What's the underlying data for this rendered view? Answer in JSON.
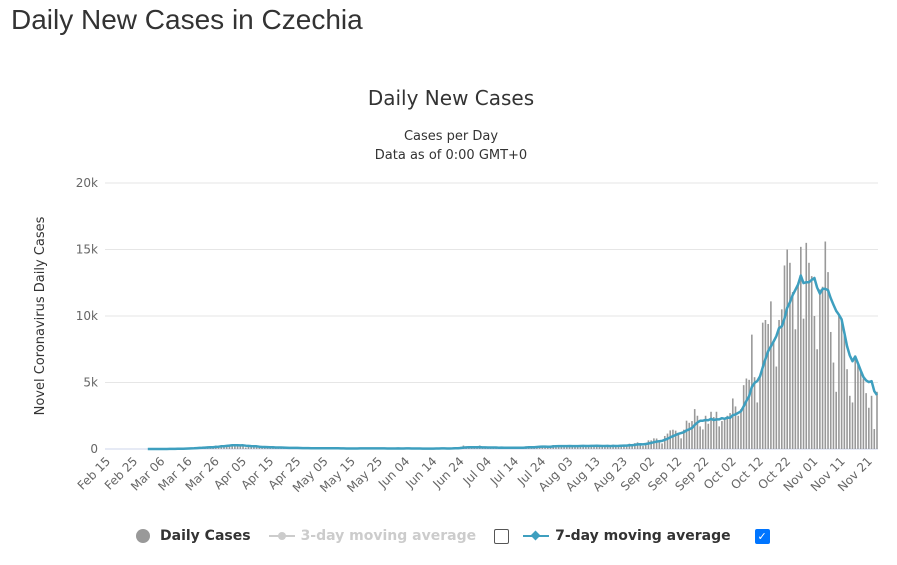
{
  "page_title": "Daily New Cases in Czechia",
  "legend": {
    "daily": "Daily Cases",
    "ma3": "3-day moving average",
    "ma7": "7-day moving average",
    "ma3_checked": false,
    "ma7_checked": true
  },
  "chart_data": {
    "type": "bar",
    "title": "Daily New Cases",
    "subtitle_1": "Cases per Day",
    "subtitle_2": "Data as of 0:00 GMT+0",
    "ylabel": "Novel Coronavirus Daily Cases",
    "ylim": [
      0,
      20000
    ],
    "yticks": [
      "0",
      "5k",
      "10k",
      "15k",
      "20k"
    ],
    "start_date": "Feb 15",
    "xticks": [
      "Feb 15",
      "Feb 25",
      "Mar 06",
      "Mar 16",
      "Mar 26",
      "Apr 05",
      "Apr 15",
      "Apr 25",
      "May 05",
      "May 15",
      "May 25",
      "Jun 04",
      "Jun 14",
      "Jun 24",
      "Jul 04",
      "Jul 14",
      "Jul 24",
      "Aug 03",
      "Aug 13",
      "Aug 23",
      "Sep 02",
      "Sep 12",
      "Sep 22",
      "Oct 02",
      "Oct 12",
      "Oct 22",
      "Nov 01",
      "Nov 11",
      "Nov 21"
    ],
    "colors": {
      "bars": "#999999",
      "ma7": "#3e9fbf"
    },
    "series": [
      {
        "name": "Daily Cases",
        "values": [
          0,
          0,
          0,
          0,
          0,
          0,
          0,
          0,
          0,
          0,
          0,
          0,
          0,
          0,
          0,
          3,
          0,
          0,
          0,
          3,
          7,
          7,
          6,
          8,
          13,
          31,
          47,
          19,
          44,
          46,
          48,
          76,
          96,
          125,
          150,
          90,
          173,
          154,
          129,
          148,
          253,
          240,
          301,
          264,
          290,
          274,
          311,
          244,
          258,
          272,
          274,
          111,
          166,
          185,
          220,
          168,
          110,
          86,
          93,
          125,
          164,
          138,
          76,
          102,
          72,
          68,
          86,
          57,
          114,
          92,
          66,
          26,
          44,
          54,
          78,
          77,
          44,
          33,
          30,
          40,
          53,
          81,
          78,
          42,
          26,
          26,
          10,
          55,
          32,
          68,
          38,
          24,
          44,
          39,
          66,
          45,
          49,
          67,
          27,
          24,
          24,
          56,
          48,
          43,
          32,
          54,
          21,
          41,
          24,
          69,
          66,
          33,
          31,
          20,
          18,
          24,
          44,
          38,
          59,
          22,
          18,
          32,
          63,
          67,
          41,
          35,
          25,
          51,
          113,
          95,
          168,
          260,
          126,
          99,
          70,
          92,
          110,
          260,
          70,
          120,
          90,
          60,
          80,
          110,
          120,
          150,
          100,
          80,
          70,
          60,
          130,
          100,
          110,
          140,
          200,
          160,
          120,
          140,
          180,
          200,
          250,
          200,
          140,
          120,
          300,
          250,
          260,
          240,
          200,
          180,
          150,
          250,
          250,
          240,
          290,
          250,
          160,
          160,
          300,
          240,
          280,
          230,
          220,
          170,
          170,
          240,
          320,
          240,
          280,
          300,
          250,
          180,
          400,
          330,
          440,
          500,
          350,
          230,
          400,
          650,
          650,
          800,
          790,
          560,
          420,
          980,
          1160,
          1400,
          1450,
          1380,
          1200,
          800,
          1450,
          2130,
          1970,
          2100,
          3000,
          2500,
          1700,
          1470,
          2500,
          1900,
          2800,
          2400,
          2800,
          1700,
          2100,
          2200,
          2500,
          2700,
          3800,
          3200,
          2500,
          3000,
          4800,
          5300,
          5200,
          8600,
          5400,
          3500,
          5400,
          9500,
          9700,
          9400,
          11100,
          8000,
          6200,
          9700,
          10500,
          13800,
          15000,
          14000,
          11800,
          9000,
          12500,
          15200,
          9800,
          15500,
          14000,
          13000,
          10000,
          7500,
          12000,
          12200,
          15600,
          13300,
          8800,
          6500,
          4300,
          10000,
          9700,
          8700,
          6000,
          4000,
          3500,
          6800,
          6300,
          6000,
          5300,
          4200,
          3100,
          4000,
          1500,
          4300
        ]
      },
      {
        "name": "7-day moving average",
        "derived_from": "Daily Cases",
        "window": 7
      }
    ]
  }
}
